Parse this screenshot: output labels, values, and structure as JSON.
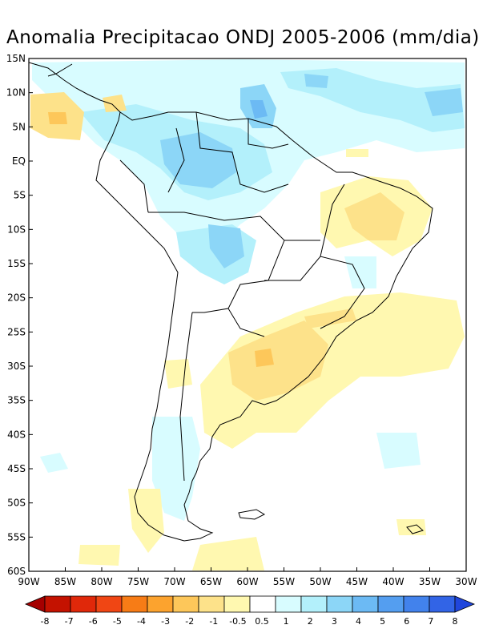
{
  "title": "Anomalia Precipitacao ONDJ 2005-2006 (mm/dia)",
  "map": {
    "lon_range": [
      -90,
      -30
    ],
    "lat_range": [
      -60,
      15
    ],
    "lat_ticks": [
      "15N",
      "10N",
      "5N",
      "EQ",
      "5S",
      "10S",
      "15S",
      "20S",
      "25S",
      "30S",
      "35S",
      "40S",
      "45S",
      "50S",
      "55S",
      "60S"
    ],
    "lon_ticks": [
      "90W",
      "85W",
      "80W",
      "75W",
      "70W",
      "65W",
      "60W",
      "55W",
      "50W",
      "45W",
      "40W",
      "35W",
      "30W"
    ]
  },
  "colorbar": {
    "labels": [
      "-8",
      "-7",
      "-6",
      "-5",
      "-4",
      "-3",
      "-2",
      "-1",
      "-0.5",
      "0.5",
      "1",
      "2",
      "3",
      "4",
      "5",
      "6",
      "7",
      "8"
    ],
    "colors": [
      "#a50000",
      "#c41200",
      "#e0280a",
      "#f04614",
      "#f77c16",
      "#fca32e",
      "#fdc75a",
      "#fde28a",
      "#fff8b0",
      "#ffffff",
      "#d8fcff",
      "#b3f0fb",
      "#8cd6f7",
      "#6cbaf4",
      "#549ef0",
      "#4282ec",
      "#3264e6",
      "#2046dc"
    ]
  }
}
